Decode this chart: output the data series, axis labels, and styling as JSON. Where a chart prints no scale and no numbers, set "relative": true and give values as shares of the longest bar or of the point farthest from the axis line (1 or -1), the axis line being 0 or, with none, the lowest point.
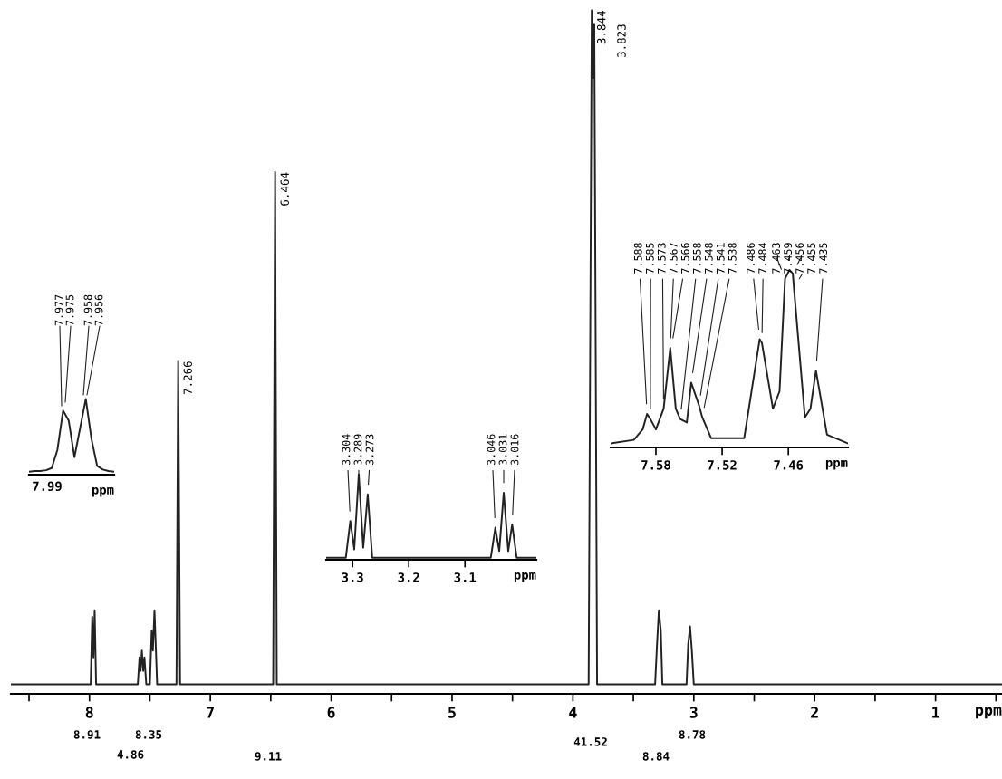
{
  "chart_data": [
    {
      "type": "line",
      "relative": true,
      "xlabel": "ppm",
      "tick_labels": "x",
      "xlim": [
        8.65,
        0.45
      ],
      "xticks": [
        8,
        7,
        6,
        5,
        4,
        3,
        2,
        1,
        {
          "value": 8.5,
          "label": null
        },
        {
          "value": 7.5,
          "label": null
        },
        {
          "value": 6.5,
          "label": null
        },
        {
          "value": 5.5,
          "label": null
        },
        {
          "value": 4.5,
          "label": null
        },
        {
          "value": 3.5,
          "label": null
        },
        {
          "value": 2.5,
          "label": null
        },
        {
          "value": 1.5,
          "label": null
        },
        {
          "value": 0.5,
          "label": null
        }
      ],
      "x": [
        8.65,
        7.99,
        7.977,
        7.967,
        7.957,
        7.945,
        7.6,
        7.586,
        7.577,
        7.566,
        7.555,
        7.545,
        7.53,
        7.5,
        7.485,
        7.475,
        7.462,
        7.452,
        7.44,
        7.28,
        7.266,
        7.25,
        6.48,
        6.464,
        6.45,
        3.87,
        3.844,
        3.833,
        3.823,
        3.8,
        3.32,
        3.304,
        3.289,
        3.273,
        3.26,
        3.06,
        3.046,
        3.031,
        3.016,
        3.0,
        0.45
      ],
      "series": [
        {
          "color": "#222222",
          "values": [
            0,
            0,
            0.1,
            0.04,
            0.11,
            0,
            0,
            0.04,
            0.02,
            0.05,
            0.02,
            0.04,
            0,
            0,
            0.08,
            0.05,
            0.11,
            0.06,
            0,
            0,
            0.48,
            0,
            0,
            0.76,
            0,
            0,
            1.0,
            0.9,
            0.98,
            0,
            0,
            0.06,
            0.11,
            0.08,
            0,
            0,
            0.06,
            0.086,
            0.05,
            0,
            0
          ]
        }
      ],
      "annotations": [
        {
          "text": "7.266",
          "x": 7.266,
          "y": 0.48
        },
        {
          "text": "6.464",
          "x": 6.464,
          "y": 0.76
        },
        {
          "text": "3.844",
          "x": 3.844,
          "y": 1.0
        },
        {
          "text": "3.823",
          "x": 3.823,
          "y": 0.98
        },
        "8.91",
        "4.86",
        "8.35",
        "9.11",
        "41.52",
        "8.84",
        "8.78"
      ]
    },
    {
      "type": "line",
      "relative": true,
      "xlabel": "ppm",
      "categories": [
        null,
        null,
        null,
        null,
        null,
        null,
        null,
        null,
        null,
        null,
        null,
        null,
        null,
        null,
        null,
        null
      ],
      "series": [
        {
          "color": "#222222",
          "values": [
            0,
            0.01,
            0.01,
            0.02,
            0.05,
            0.3,
            0.84,
            0.7,
            0.2,
            0.6,
            1.0,
            0.45,
            0.08,
            0.03,
            0.01,
            0
          ]
        }
      ],
      "annotations": [
        "7.99",
        "7.977",
        "7.975",
        "7.958",
        "7.956"
      ]
    },
    {
      "type": "line",
      "relative": true,
      "xlabel": "ppm",
      "tick_labels": "x",
      "xlim": [
        3.347,
        2.973
      ],
      "xticks": [
        3.3,
        3.2,
        3.1
      ],
      "x": [
        3.347,
        3.312,
        3.304,
        3.297,
        3.289,
        3.281,
        3.273,
        3.265,
        3.054,
        3.046,
        3.039,
        3.031,
        3.023,
        3.016,
        3.008,
        2.973
      ],
      "series": [
        {
          "color": "#222222",
          "values": [
            0,
            0,
            0.44,
            0.1,
            1.0,
            0.12,
            0.76,
            0,
            0,
            0.36,
            0.08,
            0.78,
            0.08,
            0.4,
            0,
            0
          ]
        }
      ],
      "annotations": [
        {
          "text": "3.304",
          "x": 3.304,
          "y": 0.44
        },
        {
          "text": "3.289",
          "x": 3.289,
          "y": 1.0
        },
        {
          "text": "3.273",
          "x": 3.273,
          "y": 0.76
        },
        {
          "text": "3.046",
          "x": 3.046,
          "y": 0.36
        },
        {
          "text": "3.031",
          "x": 3.031,
          "y": 0.78
        },
        {
          "text": "3.016",
          "x": 3.016,
          "y": 0.4
        }
      ]
    },
    {
      "type": "line",
      "relative": true,
      "xlabel": "ppm",
      "tick_labels": "x",
      "xlim": [
        7.621,
        7.406
      ],
      "xticks": [
        7.58,
        7.52,
        7.46
      ],
      "x": [
        7.621,
        7.6,
        7.592,
        7.588,
        7.585,
        7.58,
        7.573,
        7.567,
        7.562,
        7.558,
        7.552,
        7.548,
        7.541,
        7.538,
        7.53,
        7.5,
        7.486,
        7.484,
        7.474,
        7.468,
        7.463,
        7.459,
        7.456,
        7.455,
        7.451,
        7.445,
        7.44,
        7.435,
        7.425,
        7.406
      ],
      "series": [
        {
          "color": "#222222",
          "values": [
            0,
            0.02,
            0.08,
            0.17,
            0.14,
            0.08,
            0.2,
            0.55,
            0.2,
            0.14,
            0.12,
            0.35,
            0.22,
            0.15,
            0.03,
            0.03,
            0.6,
            0.58,
            0.2,
            0.3,
            0.95,
            1.0,
            0.98,
            0.9,
            0.6,
            0.15,
            0.2,
            0.42,
            0.05,
            0
          ]
        }
      ],
      "annotations": [
        {
          "text": "7.588",
          "x": 7.588,
          "y": 0.17
        },
        {
          "text": "7.585",
          "x": 7.585,
          "y": 0.14
        },
        {
          "text": "7.567",
          "x": 7.567,
          "y": 0.55
        },
        {
          "text": "7.573",
          "x": 7.573,
          "y": 0.2
        },
        {
          "text": "7.566",
          "x": 7.566,
          "y": 0.55
        },
        {
          "text": "7.558",
          "x": 7.558,
          "y": 0.14
        },
        {
          "text": "7.548",
          "x": 7.548,
          "y": 0.35
        },
        {
          "text": "7.541",
          "x": 7.541,
          "y": 0.22
        },
        {
          "text": "7.538",
          "x": 7.538,
          "y": 0.15
        },
        {
          "text": "7.486",
          "x": 7.486,
          "y": 0.6
        },
        {
          "text": "7.484",
          "x": 7.484,
          "y": 0.58
        },
        {
          "text": "7.463",
          "x": 7.463,
          "y": 0.95
        },
        {
          "text": "7.459",
          "x": 7.459,
          "y": 1.0
        },
        {
          "text": "7.456",
          "x": 7.456,
          "y": 0.98
        },
        {
          "text": "7.455",
          "x": 7.455,
          "y": 0.9
        },
        {
          "text": "7.435",
          "x": 7.435,
          "y": 0.42
        }
      ]
    }
  ]
}
